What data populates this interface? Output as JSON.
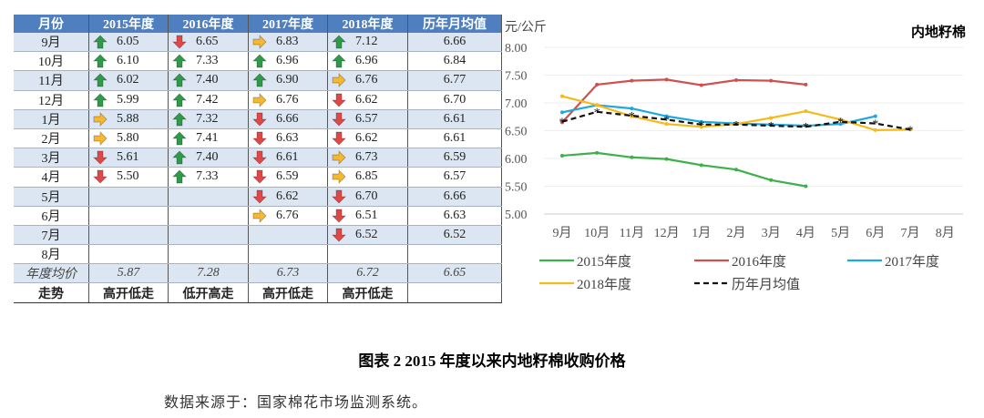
{
  "table": {
    "headers": [
      "月份",
      "2015年度",
      "2016年度",
      "2017年度",
      "2018年度",
      "历年月均值"
    ],
    "rows": [
      {
        "month": "9月",
        "cells": [
          {
            "v": "6.05",
            "a": "up"
          },
          {
            "v": "6.65",
            "a": "down"
          },
          {
            "v": "6.83",
            "a": "right"
          },
          {
            "v": "7.12",
            "a": "up"
          }
        ],
        "avg": "6.66"
      },
      {
        "month": "10月",
        "cells": [
          {
            "v": "6.10",
            "a": "up"
          },
          {
            "v": "7.33",
            "a": "up"
          },
          {
            "v": "6.96",
            "a": "up"
          },
          {
            "v": "6.96",
            "a": "up"
          }
        ],
        "avg": "6.84"
      },
      {
        "month": "11月",
        "cells": [
          {
            "v": "6.02",
            "a": "up"
          },
          {
            "v": "7.40",
            "a": "up"
          },
          {
            "v": "6.90",
            "a": "up"
          },
          {
            "v": "6.76",
            "a": "right"
          }
        ],
        "avg": "6.77"
      },
      {
        "month": "12月",
        "cells": [
          {
            "v": "5.99",
            "a": "up"
          },
          {
            "v": "7.42",
            "a": "up"
          },
          {
            "v": "6.76",
            "a": "right"
          },
          {
            "v": "6.62",
            "a": "down"
          }
        ],
        "avg": "6.70"
      },
      {
        "month": "1月",
        "cells": [
          {
            "v": "5.88",
            "a": "right"
          },
          {
            "v": "7.32",
            "a": "up"
          },
          {
            "v": "6.66",
            "a": "down"
          },
          {
            "v": "6.57",
            "a": "down"
          }
        ],
        "avg": "6.61"
      },
      {
        "month": "2月",
        "cells": [
          {
            "v": "5.80",
            "a": "right"
          },
          {
            "v": "7.41",
            "a": "up"
          },
          {
            "v": "6.63",
            "a": "down"
          },
          {
            "v": "6.62",
            "a": "down"
          }
        ],
        "avg": "6.61"
      },
      {
        "month": "3月",
        "cells": [
          {
            "v": "5.61",
            "a": "down"
          },
          {
            "v": "7.40",
            "a": "up"
          },
          {
            "v": "6.61",
            "a": "down"
          },
          {
            "v": "6.73",
            "a": "right"
          }
        ],
        "avg": "6.59"
      },
      {
        "month": "4月",
        "cells": [
          {
            "v": "5.50",
            "a": "down"
          },
          {
            "v": "7.33",
            "a": "up"
          },
          {
            "v": "6.59",
            "a": "down"
          },
          {
            "v": "6.85",
            "a": "right"
          }
        ],
        "avg": "6.57"
      },
      {
        "month": "5月",
        "cells": [
          null,
          null,
          {
            "v": "6.62",
            "a": "down"
          },
          {
            "v": "6.70",
            "a": "down"
          }
        ],
        "avg": "6.66"
      },
      {
        "month": "6月",
        "cells": [
          null,
          null,
          {
            "v": "6.76",
            "a": "right"
          },
          {
            "v": "6.51",
            "a": "down"
          }
        ],
        "avg": "6.63"
      },
      {
        "month": "7月",
        "cells": [
          null,
          null,
          null,
          {
            "v": "6.52",
            "a": "down"
          }
        ],
        "avg": "6.52"
      },
      {
        "month": "8月",
        "cells": [
          null,
          null,
          null,
          null
        ],
        "avg": ""
      }
    ],
    "avg_row": [
      "年度均价",
      "5.87",
      "7.28",
      "6.73",
      "6.72",
      "6.65"
    ],
    "trend_row": [
      "走势",
      "高开低走",
      "低开高走",
      "高开低走",
      "高开低走",
      ""
    ],
    "arrow_colors": {
      "up": "#2e9a4a",
      "down": "#e04848",
      "right": "#f5b830"
    }
  },
  "chart_data": {
    "type": "line",
    "title": "内地籽棉",
    "ylabel": "元/公斤",
    "ylim": [
      5.0,
      8.0
    ],
    "yticks": [
      "5.00",
      "5.50",
      "6.00",
      "6.50",
      "7.00",
      "7.50",
      "8.00"
    ],
    "categories": [
      "9月",
      "10月",
      "11月",
      "12月",
      "1月",
      "2月",
      "3月",
      "4月",
      "5月",
      "6月",
      "7月",
      "8月"
    ],
    "grid": true,
    "legend": "bottom",
    "series": [
      {
        "name": "2015年度",
        "color": "#3cb04a",
        "values": [
          6.05,
          6.1,
          6.02,
          5.99,
          5.88,
          5.8,
          5.61,
          5.5,
          null,
          null,
          null,
          null
        ]
      },
      {
        "name": "2016年度",
        "color": "#d05050",
        "values": [
          6.65,
          7.33,
          7.4,
          7.42,
          7.32,
          7.41,
          7.4,
          7.33,
          null,
          null,
          null,
          null
        ]
      },
      {
        "name": "2017年度",
        "color": "#1ea8e0",
        "values": [
          6.83,
          6.96,
          6.9,
          6.76,
          6.66,
          6.63,
          6.61,
          6.59,
          6.62,
          6.76,
          null,
          null
        ]
      },
      {
        "name": "2018年度",
        "color": "#f6b91a",
        "values": [
          7.12,
          6.96,
          6.76,
          6.62,
          6.57,
          6.62,
          6.73,
          6.85,
          6.7,
          6.51,
          6.52,
          null
        ]
      },
      {
        "name": "历年月均值",
        "color": "#111111",
        "dashed": true,
        "values": [
          6.66,
          6.84,
          6.77,
          6.7,
          6.61,
          6.61,
          6.59,
          6.57,
          6.66,
          6.63,
          6.52,
          null
        ]
      }
    ]
  },
  "caption": "图表 2    2015 年度以来内地籽棉收购价格",
  "source": "数据来源于：国家棉花市场监测系统。"
}
